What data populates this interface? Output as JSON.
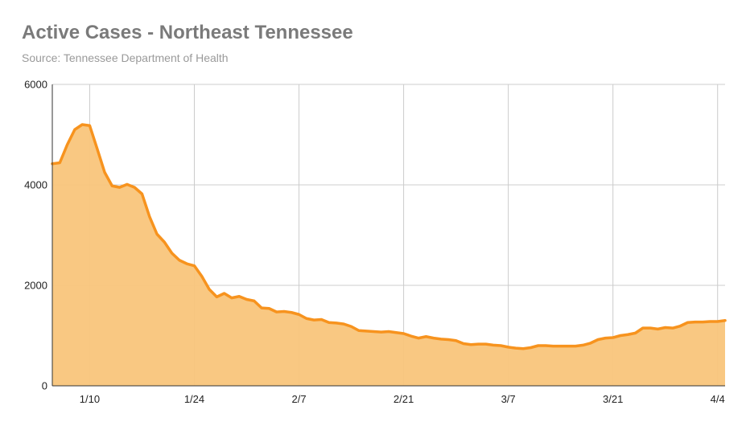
{
  "chart_data": {
    "type": "area",
    "title": "Active Cases - Northeast Tennessee",
    "subtitle": "Source: Tennessee Department of Health",
    "xlabel": "",
    "ylabel": "",
    "ylim": [
      0,
      6000
    ],
    "yticks": [
      0,
      2000,
      4000,
      6000
    ],
    "xticks": [
      {
        "label": "1/10",
        "index": 5
      },
      {
        "label": "1/24",
        "index": 19
      },
      {
        "label": "2/7",
        "index": 33
      },
      {
        "label": "2/21",
        "index": 47
      },
      {
        "label": "3/7",
        "index": 61
      },
      {
        "label": "3/21",
        "index": 75
      },
      {
        "label": "4/4",
        "index": 89
      }
    ],
    "grid": true,
    "colors": {
      "line": "#f7931e",
      "fill": "#f9c57b",
      "grid": "#cccccc",
      "axis": "#333333"
    },
    "series": [
      {
        "dates": [
          "1/5",
          "1/6",
          "1/7",
          "1/8",
          "1/9",
          "1/10",
          "1/11",
          "1/12",
          "1/13",
          "1/14",
          "1/15",
          "1/16",
          "1/17",
          "1/18",
          "1/19",
          "1/20",
          "1/21",
          "1/22",
          "1/23",
          "1/24",
          "1/25",
          "1/26",
          "1/27",
          "1/28",
          "1/29",
          "1/30",
          "1/31",
          "2/1",
          "2/2",
          "2/3",
          "2/4",
          "2/5",
          "2/6",
          "2/7",
          "2/8",
          "2/9",
          "2/10",
          "2/11",
          "2/12",
          "2/13",
          "2/14",
          "2/15",
          "2/16",
          "2/17",
          "2/18",
          "2/19",
          "2/20",
          "2/21",
          "2/22",
          "2/23",
          "2/24",
          "2/25",
          "2/26",
          "2/27",
          "2/28",
          "3/1",
          "3/2",
          "3/3",
          "3/4",
          "3/5",
          "3/6",
          "3/7",
          "3/8",
          "3/9",
          "3/10",
          "3/11",
          "3/12",
          "3/13",
          "3/14",
          "3/15",
          "3/16",
          "3/17",
          "3/18",
          "3/19",
          "3/20",
          "3/21",
          "3/22",
          "3/23",
          "3/24",
          "3/25",
          "3/26",
          "3/27",
          "3/28",
          "3/29",
          "3/30",
          "3/31",
          "4/1",
          "4/2",
          "4/3",
          "4/4",
          "4/5"
        ],
        "values": [
          4420,
          4440,
          4800,
          5100,
          5200,
          5180,
          4720,
          4250,
          3980,
          3950,
          4010,
          3950,
          3820,
          3370,
          3020,
          2860,
          2640,
          2500,
          2430,
          2390,
          2180,
          1920,
          1770,
          1840,
          1750,
          1780,
          1720,
          1690,
          1550,
          1540,
          1470,
          1480,
          1460,
          1420,
          1340,
          1310,
          1320,
          1260,
          1250,
          1230,
          1180,
          1100,
          1090,
          1080,
          1070,
          1080,
          1060,
          1040,
          990,
          950,
          980,
          950,
          930,
          920,
          900,
          840,
          820,
          830,
          830,
          810,
          800,
          770,
          750,
          740,
          760,
          800,
          800,
          790,
          790,
          790,
          790,
          810,
          850,
          920,
          950,
          960,
          1000,
          1020,
          1050,
          1150,
          1150,
          1130,
          1160,
          1150,
          1190,
          1260,
          1270,
          1270,
          1280,
          1280,
          1300
        ]
      }
    ]
  }
}
